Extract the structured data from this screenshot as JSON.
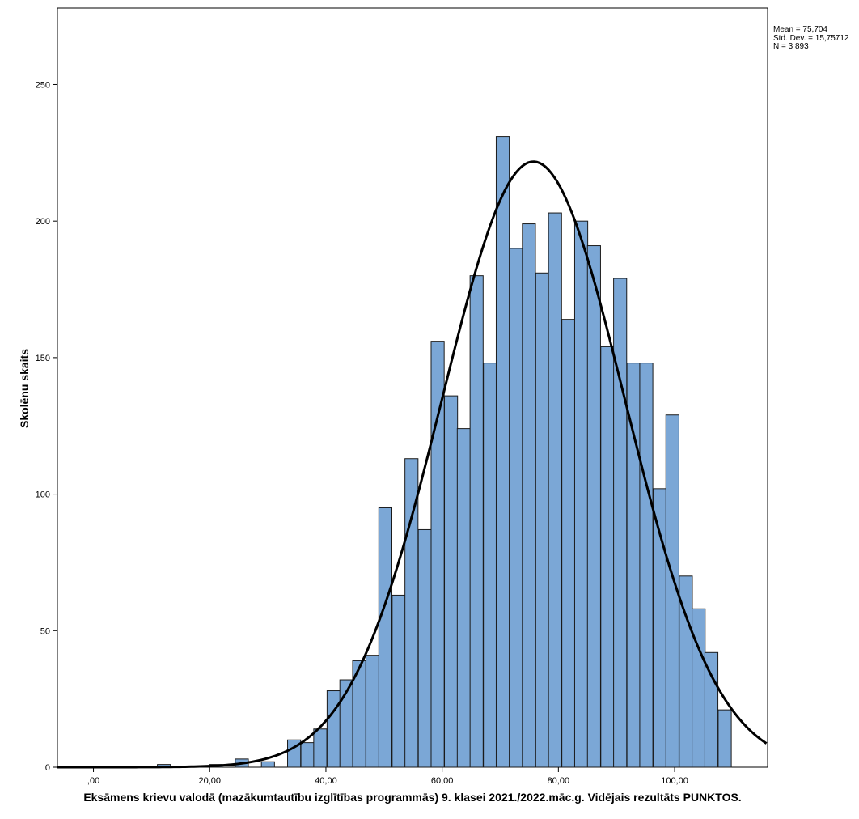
{
  "chart_data": {
    "type": "bar",
    "title": "",
    "xlabel": "Eksāmens krievu valodā (mazākumtautību izglītības programmās) 9. klasei 2021./2022.māc.g. Vidējais rezultāts PUNKTOS.",
    "ylabel": "Skolēnu skaits",
    "xlim": [
      -6.2,
      116
    ],
    "ylim": [
      0,
      278
    ],
    "x_ticks": [
      0,
      20,
      40,
      60,
      80,
      100
    ],
    "x_tick_labels": [
      ",00",
      "20,00",
      "40,00",
      "60,00",
      "80,00",
      "100,00"
    ],
    "y_ticks": [
      0,
      50,
      100,
      150,
      200,
      250
    ],
    "y_tick_labels": [
      "0",
      "50",
      "100",
      "150",
      "200",
      "250"
    ],
    "bin_width": 2.25,
    "bins": [
      {
        "x0": 11.0,
        "count": 1
      },
      {
        "x0": 19.9,
        "count": 1
      },
      {
        "x0": 24.4,
        "count": 3
      },
      {
        "x0": 28.9,
        "count": 2
      },
      {
        "x0": 33.4,
        "count": 10
      },
      {
        "x0": 35.7,
        "count": 9
      },
      {
        "x0": 37.9,
        "count": 14
      },
      {
        "x0": 40.2,
        "count": 28
      },
      {
        "x0": 42.4,
        "count": 32
      },
      {
        "x0": 44.6,
        "count": 39
      },
      {
        "x0": 46.9,
        "count": 41
      },
      {
        "x0": 49.1,
        "count": 95
      },
      {
        "x0": 51.4,
        "count": 63
      },
      {
        "x0": 53.6,
        "count": 113
      },
      {
        "x0": 55.9,
        "count": 87
      },
      {
        "x0": 58.1,
        "count": 156
      },
      {
        "x0": 60.4,
        "count": 136
      },
      {
        "x0": 62.6,
        "count": 124
      },
      {
        "x0": 64.8,
        "count": 180
      },
      {
        "x0": 67.1,
        "count": 148
      },
      {
        "x0": 69.3,
        "count": 231
      },
      {
        "x0": 71.6,
        "count": 190
      },
      {
        "x0": 73.8,
        "count": 199
      },
      {
        "x0": 76.1,
        "count": 181
      },
      {
        "x0": 78.3,
        "count": 203
      },
      {
        "x0": 80.6,
        "count": 164
      },
      {
        "x0": 82.8,
        "count": 200
      },
      {
        "x0": 85.0,
        "count": 191
      },
      {
        "x0": 87.3,
        "count": 154
      },
      {
        "x0": 89.5,
        "count": 179
      },
      {
        "x0": 91.8,
        "count": 148
      },
      {
        "x0": 94.0,
        "count": 148
      },
      {
        "x0": 96.3,
        "count": 102
      },
      {
        "x0": 98.5,
        "count": 129
      },
      {
        "x0": 100.8,
        "count": 70
      },
      {
        "x0": 103.0,
        "count": 58
      },
      {
        "x0": 105.2,
        "count": 42
      },
      {
        "x0": 107.5,
        "count": 21
      }
    ],
    "normal_curve": {
      "mean": 75.704,
      "std": 15.75712,
      "n": 3893
    },
    "bar_color": "#7BA7D6",
    "bar_stroke": "#1a1a1a",
    "curve_color": "#000000"
  },
  "stats_box": {
    "mean": "Mean = 75,704",
    "std": "Std. Dev. = 15,75712",
    "n": "N = 3 893"
  }
}
